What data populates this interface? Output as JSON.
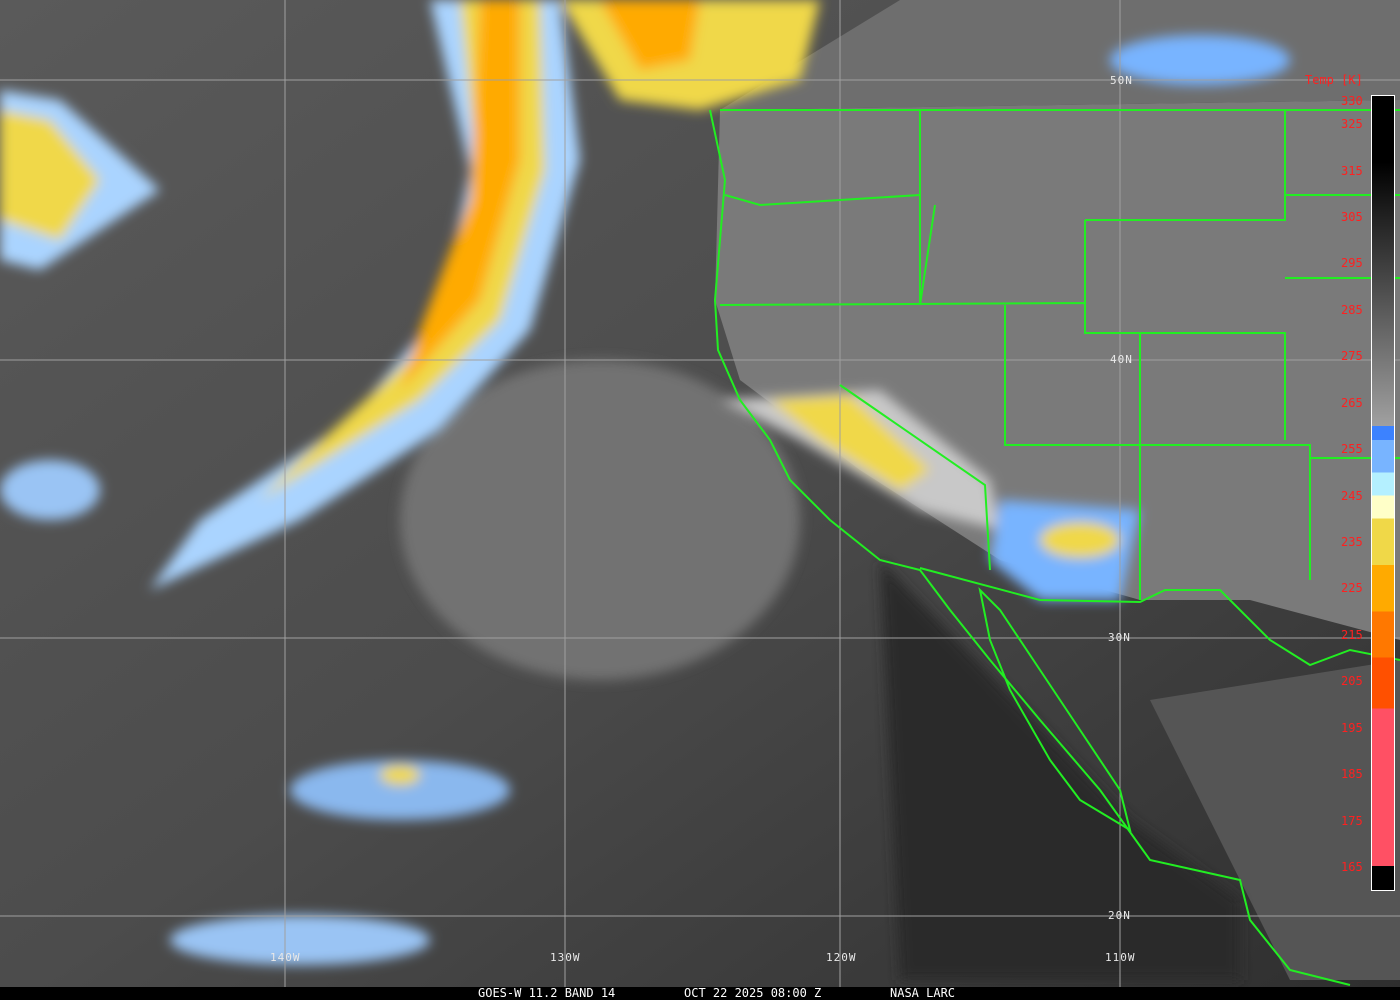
{
  "caption": {
    "satellite": "GOES-W 11.2 BAND 14",
    "datetime": "OCT 22 2025 08:00 Z",
    "source": "NASA LARC"
  },
  "colorbar": {
    "title": "Temp [K]",
    "ticks": [
      "330",
      "325",
      "315",
      "305",
      "295",
      "285",
      "275",
      "265",
      "255",
      "245",
      "235",
      "225",
      "215",
      "205",
      "195",
      "185",
      "175",
      "165"
    ],
    "range_k": [
      165,
      330
    ],
    "colors": {
      "warm": "#000000",
      "mid": "#a0a0a0",
      "blue": "#3c82ff",
      "light_blue": "#78b4ff",
      "cyan": "#b4f0ff",
      "pale_yellow": "#ffffc8",
      "yellow": "#f0d848",
      "orange": "#ffaa00",
      "dark_orange": "#ff7800",
      "red_orange": "#ff5000",
      "pink": "#ff5064"
    }
  },
  "grid": {
    "longitudes": [
      "140W",
      "130W",
      "120W",
      "110W"
    ],
    "latitudes": [
      "50N",
      "40N",
      "30N",
      "20N"
    ]
  },
  "boundary_color": "#22ee22"
}
